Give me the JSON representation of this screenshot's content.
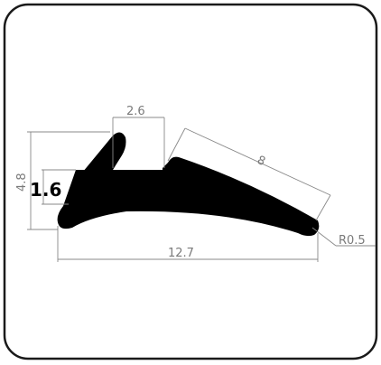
{
  "drawing": {
    "frame_color": "#1a1a1a",
    "profile_color": "#000000",
    "dimension_color": "#888888",
    "dimensions": {
      "tip_width": "2.6",
      "lip_length": "8",
      "total_height": "4.8",
      "base_thickness": "1.6",
      "overall_width": "12.7",
      "end_radius": "R0.5"
    }
  }
}
